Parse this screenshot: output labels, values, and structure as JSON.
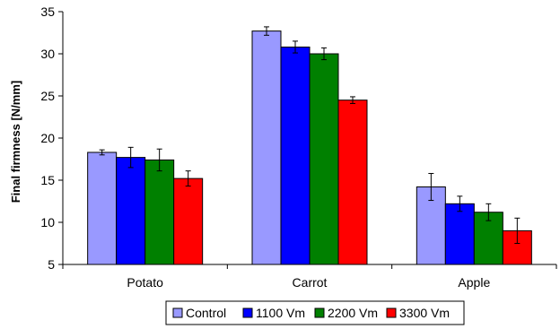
{
  "chart_data": {
    "type": "bar",
    "title": "",
    "xlabel": "",
    "ylabel": "Final firmness [N/mm]",
    "ylim": [
      5,
      35
    ],
    "yticks": [
      5,
      10,
      15,
      20,
      25,
      30,
      35
    ],
    "categories": [
      "Potato",
      "Carrot",
      "Apple"
    ],
    "series": [
      {
        "name": "Control",
        "color": "#9999ff",
        "values": [
          18.3,
          32.7,
          14.2
        ],
        "errors": [
          0.3,
          0.5,
          1.6
        ]
      },
      {
        "name": "1100 Vm",
        "color": "#0000ff",
        "values": [
          17.7,
          30.8,
          12.2
        ],
        "errors": [
          1.2,
          0.7,
          0.9
        ]
      },
      {
        "name": "2200 Vm",
        "color": "#008000",
        "values": [
          17.4,
          30.0,
          11.2
        ],
        "errors": [
          1.3,
          0.7,
          1.0
        ]
      },
      {
        "name": "3300 Vm",
        "color": "#ff0000",
        "values": [
          15.2,
          24.5,
          9.0
        ],
        "errors": [
          0.9,
          0.4,
          1.5
        ]
      }
    ],
    "grid": false,
    "legend": "bottom"
  }
}
